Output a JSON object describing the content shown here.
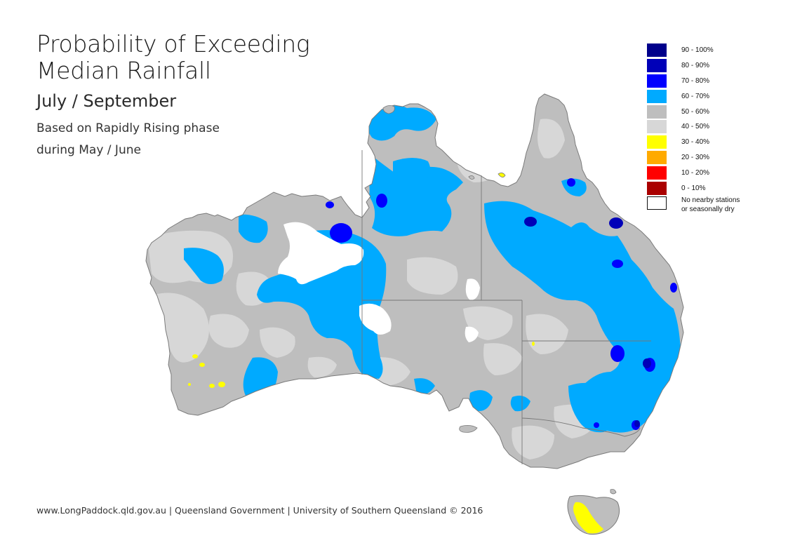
{
  "title": {
    "line1": "Probability of Exceeding",
    "line2": "Median Rainfall"
  },
  "period": "July / September",
  "basis": {
    "line1": "Based on Rapidly Rising phase",
    "line2": "during May / June"
  },
  "legend": {
    "items": [
      {
        "label": "90 - 100%",
        "color": "#00008b"
      },
      {
        "label": "80 - 90%",
        "color": "#0000b8"
      },
      {
        "label": "70 - 80%",
        "color": "#0000ff"
      },
      {
        "label": "60 - 70%",
        "color": "#00aaff"
      },
      {
        "label": "50 - 60%",
        "color": "#bebebe"
      },
      {
        "label": "40 - 50%",
        "color": "#d7d7d7"
      },
      {
        "label": "30 - 40%",
        "color": "#ffff00"
      },
      {
        "label": "20 - 30%",
        "color": "#ffaa00"
      },
      {
        "label": "10 - 20%",
        "color": "#ff0000"
      },
      {
        "label": "0 - 10%",
        "color": "#aa0000"
      }
    ],
    "nodata": {
      "line1": "No nearby stations",
      "line2": "or seasonally dry",
      "color": "#ffffff"
    }
  },
  "map": {
    "region": "Australia",
    "border_color": "#7a7a7a",
    "icon": "australia-map"
  },
  "footer": "www.LongPaddock.qld.gov.au | Queensland Government | University of Southern Queensland © 2016"
}
